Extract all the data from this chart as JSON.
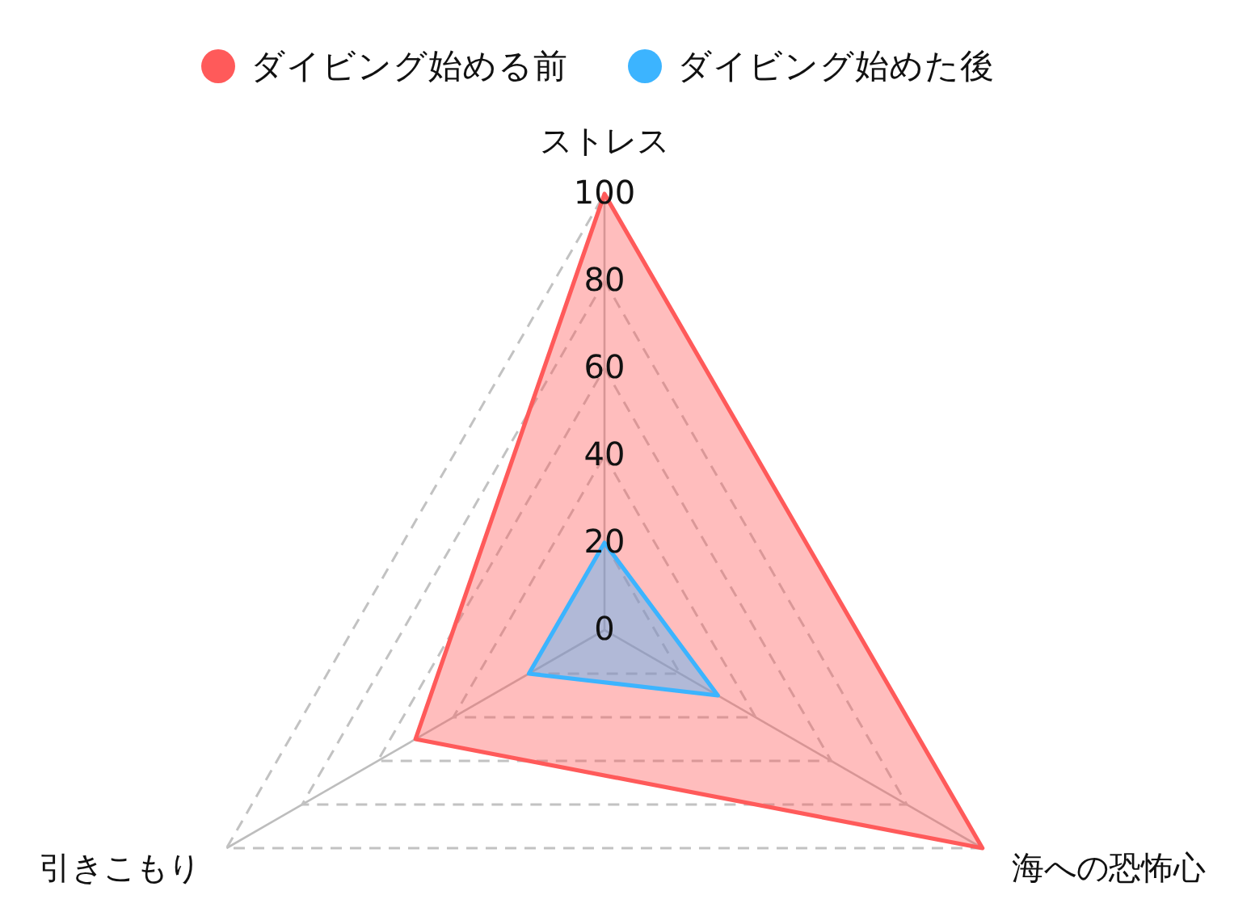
{
  "chart_data": {
    "type": "radar",
    "categories": [
      "ストレス",
      "海への恐怖心",
      "引きこもり"
    ],
    "series": [
      {
        "name": "ダイビング始める前",
        "color": "#ff5a5a",
        "values": [
          100,
          100,
          50
        ]
      },
      {
        "name": "ダイビング始めた後",
        "color": "#3cb4ff",
        "values": [
          20,
          30,
          20
        ]
      }
    ],
    "ylim": [
      0,
      100
    ],
    "yticks": [
      0,
      20,
      40,
      60,
      80,
      100
    ],
    "grid": true,
    "legend": "top"
  }
}
